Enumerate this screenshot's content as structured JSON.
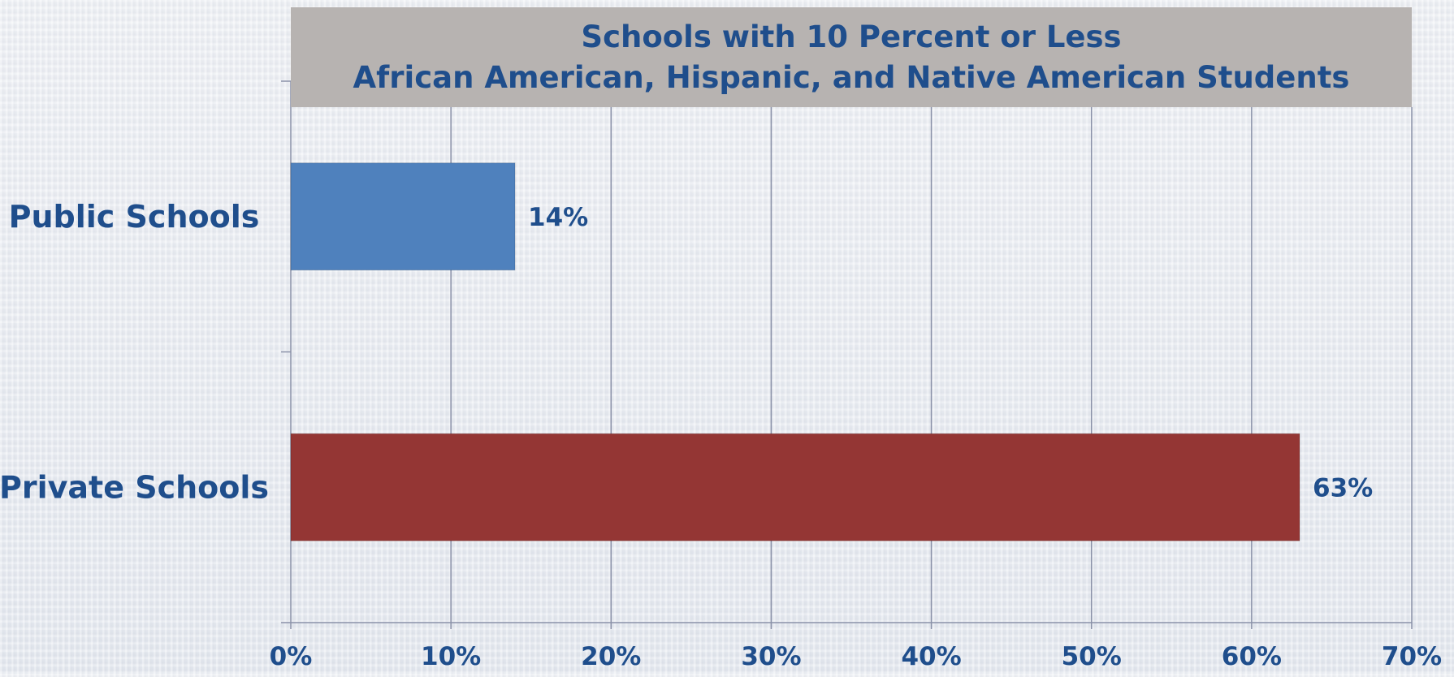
{
  "chart_data": {
    "type": "bar",
    "orientation": "horizontal",
    "title": [
      "Schools with 10 Percent or Less",
      "African American, Hispanic, and Native American Students"
    ],
    "categories": [
      "Public Schools",
      "Private Schools"
    ],
    "values": [
      14,
      63
    ],
    "value_labels": [
      "14%",
      "63%"
    ],
    "colors": [
      "#4f81bd",
      "#943634"
    ],
    "xlim": [
      0,
      70
    ],
    "xticks": [
      0,
      10,
      20,
      30,
      40,
      50,
      60,
      70
    ],
    "xtick_labels": [
      "0%",
      "10%",
      "20%",
      "30%",
      "40%",
      "50%",
      "60%",
      "70%"
    ],
    "grid": true,
    "title_background": "#b7b3b1",
    "text_color": "#1f4e8c"
  }
}
